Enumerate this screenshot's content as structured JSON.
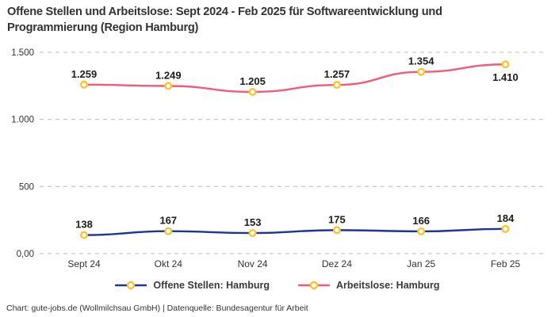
{
  "header": {
    "title_lines": [
      "Offene Stellen und Arbeitslose: Sept 2024 - Feb 2025 für Softwareentwicklung und",
      "Programmierung (Region Hamburg)"
    ]
  },
  "footer": {
    "credit": "Chart: gute-jobs.de (Wollmilchsau GmbH) | Datenquelle: Bundesagentur für Arbeit"
  },
  "colors": {
    "background": "#FFFFFF",
    "grid": "#CBCBCB",
    "title_text": "#333333",
    "axis_text": "#333333",
    "data_label": "#1C1C1C",
    "legend_text": "#3A3A3A",
    "series_blue": "#1E339B",
    "series_pink": "#F4597A",
    "marker_ring": "#FCC330",
    "marker_fill": "#FFFFFF"
  },
  "chart_data": {
    "type": "line",
    "title": "Offene Stellen und Arbeitslose: Sept 2024 - Feb 2025 für Softwareentwicklung und Programmierung (Region Hamburg)",
    "categories": [
      "Sept 24",
      "Okt 24",
      "Nov 24",
      "Dez 24",
      "Jan 25",
      "Feb 25"
    ],
    "series": [
      {
        "name": "Offene Stellen: Hamburg",
        "color": "#1E339B",
        "values": [
          138,
          167,
          153,
          175,
          166,
          184
        ],
        "labels": [
          "138",
          "167",
          "153",
          "175",
          "166",
          "184"
        ],
        "label_positions": [
          "above",
          "above",
          "above",
          "above",
          "above",
          "above"
        ]
      },
      {
        "name": "Arbeitslose: Hamburg",
        "color": "#F4597A",
        "values": [
          1259,
          1249,
          1205,
          1257,
          1354,
          1410
        ],
        "labels": [
          "1.259",
          "1.249",
          "1.205",
          "1.257",
          "1.354",
          "1.410"
        ],
        "label_positions": [
          "above",
          "above",
          "above",
          "above",
          "above",
          "below"
        ]
      }
    ],
    "y_axis": {
      "range": [
        0,
        1500
      ],
      "ticks": [
        {
          "value": 0,
          "label": "0,00"
        },
        {
          "value": 500,
          "label": "500"
        },
        {
          "value": 1000,
          "label": "1.000"
        },
        {
          "value": 1500,
          "label": "1.500"
        }
      ]
    },
    "grid": "dashed-horizontal",
    "legend_position": "bottom",
    "marker": {
      "fill": "#FFFFFF",
      "ring": "#FCC330"
    }
  }
}
